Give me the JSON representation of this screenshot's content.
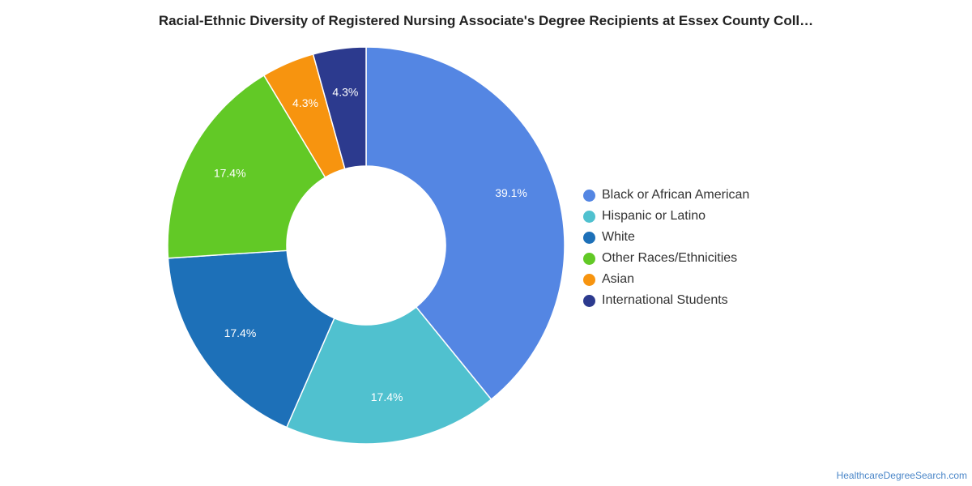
{
  "chart_data": {
    "type": "pie",
    "title": "Racial-Ethnic Diversity of Registered Nursing Associate's Degree Recipients at Essex County Coll…",
    "donut": true,
    "legend_position": "right",
    "slices": [
      {
        "name": "Black or African American",
        "value": 39.1,
        "label": "39.1%",
        "color": "#5486e3"
      },
      {
        "name": "Hispanic or Latino",
        "value": 17.4,
        "label": "17.4%",
        "color": "#50c1cf"
      },
      {
        "name": "White",
        "value": 17.4,
        "label": "17.4%",
        "color": "#1d70b8"
      },
      {
        "name": "Other Races/Ethnicities",
        "value": 17.4,
        "label": "17.4%",
        "color": "#62c926"
      },
      {
        "name": "Asian",
        "value": 4.3,
        "label": "4.3%",
        "color": "#f7940f"
      },
      {
        "name": "International Students",
        "value": 4.3,
        "label": "4.3%",
        "color": "#2c3a8e"
      }
    ]
  },
  "footer": {
    "source": "HealthcareDegreeSearch.com"
  }
}
